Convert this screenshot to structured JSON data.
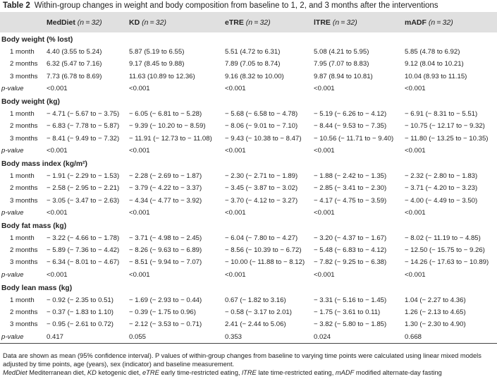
{
  "caption": {
    "label": "Table 2",
    "text": "Within-group changes in weight and body composition from baseline to 1, 2, and 3 months after the interventions"
  },
  "columns": [
    {
      "name": "MedDiet",
      "n": "(n = 32)"
    },
    {
      "name": "KD",
      "n": "(n = 32)"
    },
    {
      "name": "eTRE",
      "n": "(n = 32)"
    },
    {
      "name": "lTRE",
      "n": "(n = 32)"
    },
    {
      "name": "mADF",
      "n": "(n = 32)"
    }
  ],
  "sections": [
    {
      "title": "Body weight (% lost)",
      "rows": [
        {
          "label": "1 month",
          "values": [
            "4.40 (3.55 to 5.24)",
            "5.87 (5.19 to 6.55)",
            "5.51 (4.72 to 6.31)",
            "5.08 (4.21 to 5.95)",
            "5.85 (4.78 to 6.92)"
          ]
        },
        {
          "label": "2 months",
          "values": [
            "6.32 (5.47 to 7.16)",
            "9.17 (8.45 to 9.88)",
            "7.89 (7.05 to 8.74)",
            "7.95 (7.07 to 8.83)",
            "9.12 (8.04 to 10.21)"
          ]
        },
        {
          "label": "3 months",
          "values": [
            "7.73 (6.78 to 8.69)",
            "11.63 (10.89 to 12.36)",
            "9.16 (8.32 to 10.00)",
            "9.87 (8.94 to 10.81)",
            "10.04 (8.93 to 11.15)"
          ]
        }
      ],
      "pvalue": {
        "label": "p-value",
        "values": [
          "<0.001",
          "<0.001",
          "<0.001",
          "<0.001",
          "<0.001"
        ]
      }
    },
    {
      "title": "Body weight (kg)",
      "rows": [
        {
          "label": "1 month",
          "values": [
            "− 4.71 (− 5.67 to − 3.75)",
            "− 6.05 (− 6.81 to − 5.28)",
            "− 5.68 (− 6.58 to − 4.78)",
            "− 5.19 (− 6.26 to − 4.12)",
            "− 6.91 (− 8.31 to − 5.51)"
          ]
        },
        {
          "label": "2 months",
          "values": [
            "− 6.83 (− 7.78 to − 5.87)",
            "− 9.39 (− 10.20 to − 8.59)",
            "− 8.06 (− 9.01 to − 7.10)",
            "− 8.44 (− 9.53 to − 7.35)",
            "− 10.75 (− 12.17 to − 9.32)"
          ]
        },
        {
          "label": "3 months",
          "values": [
            "− 8.41 (− 9.49 to − 7.32)",
            "− 11.91 (− 12.73 to − 11.08)",
            "− 9.43 (− 10.38 to − 8.47)",
            "− 10.56 (− 11.71 to − 9.40)",
            "− 11.80 (− 13.25 to − 10.35)"
          ]
        }
      ],
      "pvalue": {
        "label": "p-value",
        "values": [
          "<0.001",
          "<0.001",
          "<0.001",
          "<0.001",
          "<0.001"
        ]
      }
    },
    {
      "title": "Body mass index (kg/m²)",
      "rows": [
        {
          "label": "1 month",
          "values": [
            "− 1.91 (− 2.29 to − 1.53)",
            "− 2.28 (− 2.69 to − 1.87)",
            "− 2.30 (− 2.71 to − 1.89)",
            "− 1.88 (− 2.42 to − 1.35)",
            "− 2.32 (− 2.80 to − 1.83)"
          ]
        },
        {
          "label": "2 months",
          "values": [
            "− 2.58 (− 2.95 to − 2.21)",
            "− 3.79 (− 4.22 to − 3.37)",
            "− 3.45 (− 3.87 to − 3.02)",
            "− 2.85 (− 3.41 to − 2.30)",
            "− 3.71 (− 4.20 to − 3.23)"
          ]
        },
        {
          "label": "3 months",
          "values": [
            "− 3.05 (− 3.47 to − 2.63)",
            "− 4.34 (− 4.77 to − 3.92)",
            "− 3.70 (− 4.12 to − 3.27)",
            "− 4.17 (− 4.75 to − 3.59)",
            "− 4.00 (− 4.49 to − 3.50)"
          ]
        }
      ],
      "pvalue": {
        "label": "p-value",
        "values": [
          "<0.001",
          "<0.001",
          "<0.001",
          "<0.001",
          "<0.001"
        ]
      }
    },
    {
      "title": "Body fat mass (kg)",
      "rows": [
        {
          "label": "1 month",
          "values": [
            "− 3.22 (− 4.66 to − 1.78)",
            "− 3.71 (− 4.98 to − 2.45)",
            "− 6.04 (− 7.80 to − 4.27)",
            "− 3.20 (− 4.37 to − 1.67)",
            "− 8.02 (− 11.19 to − 4.85)"
          ]
        },
        {
          "label": "2 months",
          "values": [
            "− 5.89 (− 7.36 to − 4.42)",
            "− 8.26 (− 9.63 to − 6.89)",
            "− 8.56 (− 10.39 to − 6.72)",
            "− 5.48 (− 6.83 to − 4.12)",
            "− 12.50 (− 15.75 to − 9.26)"
          ]
        },
        {
          "label": "3 months",
          "values": [
            "− 6.34 (− 8.01 to − 4.67)",
            "− 8.51 (− 9.94 to − 7.07)",
            "− 10.00 (− 11.88 to − 8.12)",
            "− 7.82 (− 9.25 to − 6.38)",
            "− 14.26 (− 17.63 to − 10.89)"
          ]
        }
      ],
      "pvalue": {
        "label": "p-value",
        "values": [
          "<0.001",
          "<0.001",
          "<0.001",
          "<0.001",
          "<0.001"
        ]
      }
    },
    {
      "title": "Body lean mass (kg)",
      "rows": [
        {
          "label": "1 month",
          "values": [
            "− 0.92 (− 2.35 to 0.51)",
            "− 1.69 (− 2.93 to − 0.44)",
            "0.67 (− 1.82 to 3.16)",
            "− 3.31 (− 5.16 to − 1.45)",
            "1.04 (− 2.27 to 4.36)"
          ]
        },
        {
          "label": "2 months",
          "values": [
            "− 0.37 (− 1.83 to 1.10)",
            "− 0.39 (− 1.75 to 0.96)",
            "− 0.58 (− 3.17 to 2.01)",
            "− 1.75 (− 3.61 to 0.11)",
            "1.26 (− 2.13 to 4.65)"
          ]
        },
        {
          "label": "3 months",
          "values": [
            "− 0.95 (− 2.61 to 0.72)",
            "− 2.12 (− 3.53 to − 0.71)",
            "2.41 (− 2.44 to 5.06)",
            "− 3.82 (− 5.80 to − 1.85)",
            "1.30 (− 2.30 to 4.90)"
          ]
        }
      ],
      "pvalue": {
        "label": "p-value",
        "values": [
          "0.417",
          "0.055",
          "0.353",
          "0.024",
          "0.668"
        ]
      }
    }
  ],
  "footnote": "Data are shown as mean (95% confidence interval). P values of within-group changes from baseline to varying time points were calculated using linear mixed models adjusted by time points, age (years), sex (indicator) and baseline measurement.",
  "abbreviations": [
    {
      "abbr": "MedDiet",
      "text": "Mediterranean diet,"
    },
    {
      "abbr": "KD",
      "text": "ketogenic diet,"
    },
    {
      "abbr": "eTRE",
      "text": "early time-restricted eating,"
    },
    {
      "abbr": "lTRE",
      "text": "late time-restricted eating,"
    },
    {
      "abbr": "mADF",
      "text": "modified alternate-day fasting"
    }
  ]
}
